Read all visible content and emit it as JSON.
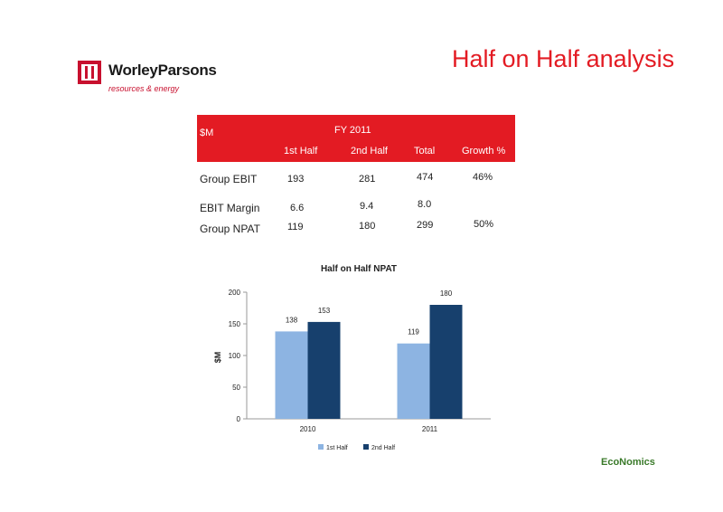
{
  "logo": {
    "name": "WorleyParsons",
    "tagline": "resources & energy"
  },
  "page": {
    "title": "Half on Half analysis",
    "brand": "EcoNomics"
  },
  "table": {
    "unit_label": "$M",
    "period": "FY 2011",
    "columns": [
      "1st Half",
      "2nd Half",
      "Total",
      "Growth %"
    ],
    "rows": [
      {
        "label": "Group EBIT",
        "values": [
          "193",
          "281",
          "474",
          "46%"
        ]
      },
      {
        "label": "EBIT Margin",
        "values": [
          "6.6",
          "9.4",
          "8.0",
          ""
        ]
      },
      {
        "label": "Group NPAT",
        "values": [
          "119",
          "180",
          "299",
          "50%"
        ]
      }
    ]
  },
  "chart_data": {
    "type": "bar",
    "title": "Half on Half NPAT",
    "categories": [
      "2010",
      "2011"
    ],
    "series": [
      {
        "name": "1st Half",
        "values": [
          138,
          119
        ],
        "color": "#8db4e2"
      },
      {
        "name": "2nd Half",
        "values": [
          153,
          180
        ],
        "color": "#17406d"
      }
    ],
    "ylabel": "$M",
    "ylim": [
      0,
      200
    ],
    "yticks": [
      0,
      50,
      100,
      150,
      200
    ],
    "grid": false,
    "legend": "bottom"
  }
}
